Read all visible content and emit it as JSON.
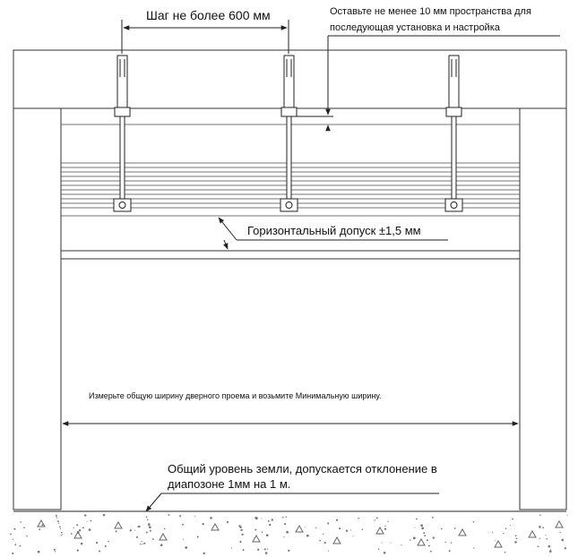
{
  "labels": {
    "spacing": "Шаг не более 600 мм",
    "clearance_line1": "Оставьте не менее 10 мм пространства для",
    "clearance_line2": "последующая установка и настройка",
    "tolerance": "Горизонтальный допуск ±1,5 мм",
    "opening_width": "Измерьте общую ширину дверного проема и возьмите Минимальную ширину.",
    "floor_line1": "Общий уровень земли, допускается отклонение в",
    "floor_line2": "диапозоне 1мм на 1 м."
  },
  "colors": {
    "line": "#333333",
    "text": "#111111",
    "floor_speckle": "#777777"
  },
  "icons": [
    "arrowhead",
    "anchor-bolt",
    "hex-nut"
  ]
}
